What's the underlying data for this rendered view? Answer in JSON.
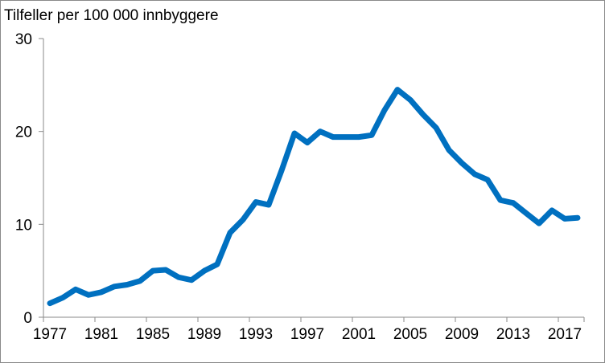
{
  "chart_data": {
    "type": "line",
    "title": "Tilfeller per 100 000 innbyggere",
    "xlabel": "",
    "ylabel": "",
    "ylim": [
      0,
      30
    ],
    "yticks": [
      0,
      10,
      20,
      30
    ],
    "grid": false,
    "x": [
      1977,
      1978,
      1979,
      1980,
      1981,
      1982,
      1983,
      1984,
      1985,
      1986,
      1987,
      1988,
      1989,
      1990,
      1991,
      1992,
      1993,
      1994,
      1995,
      1996,
      1997,
      1998,
      1999,
      2000,
      2001,
      2002,
      2003,
      2004,
      2005,
      2006,
      2007,
      2008,
      2009,
      2010,
      2011,
      2012,
      2013,
      2014,
      2015,
      2016,
      2017,
      2018
    ],
    "xtick_labels": [
      "1977",
      "1981",
      "1985",
      "1989",
      "1993",
      "1997",
      "2001",
      "2005",
      "2009",
      "2013",
      "2017"
    ],
    "series": [
      {
        "color": "#0070c0",
        "values": [
          1.5,
          2.1,
          3.0,
          2.4,
          2.7,
          3.3,
          3.5,
          3.9,
          5.0,
          5.1,
          4.3,
          4.0,
          5.0,
          5.7,
          9.1,
          10.5,
          12.4,
          12.1,
          15.8,
          19.8,
          18.8,
          20.0,
          19.4,
          19.4,
          19.4,
          19.6,
          22.3,
          24.5,
          23.4,
          21.8,
          20.4,
          18.0,
          16.6,
          15.4,
          14.8,
          12.6,
          12.3,
          11.2,
          10.1,
          11.5,
          10.6,
          10.7
        ]
      }
    ]
  }
}
